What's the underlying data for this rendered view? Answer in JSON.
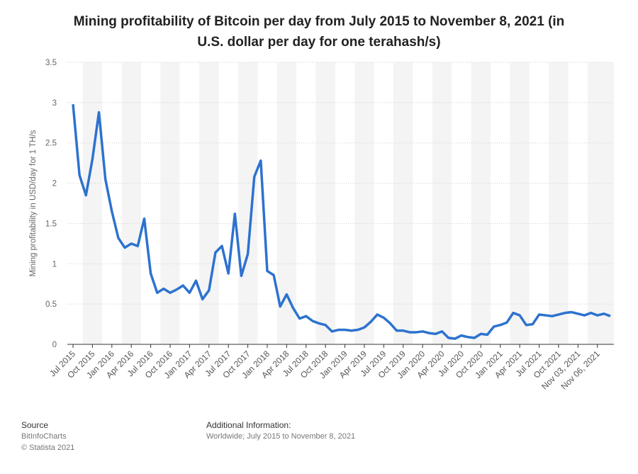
{
  "chart_data": {
    "type": "line",
    "title": "Mining profitability of Bitcoin per day from July 2015 to November 8, 2021 (in U.S. dollar per day for one terahash/s)",
    "y_label": "Mining profitability in USD/day for 1 TH/s",
    "categories": [
      "Jul 2015",
      null,
      null,
      "Oct 2015",
      null,
      null,
      "Jan 2016",
      null,
      null,
      "Apr 2016",
      null,
      null,
      "Jul 2016",
      null,
      null,
      "Oct 2016",
      null,
      null,
      "Jan 2017",
      null,
      null,
      "Apr 2017",
      null,
      null,
      "Jul 2017",
      null,
      null,
      "Oct 2017",
      null,
      null,
      "Jan 2018",
      null,
      null,
      "Apr 2018",
      null,
      null,
      "Jul 2018",
      null,
      null,
      "Oct 2018",
      null,
      null,
      "Jan 2019",
      null,
      null,
      "Apr 2019",
      null,
      null,
      "Jul 2019",
      null,
      null,
      "Oct 2019",
      null,
      null,
      "Jan 2020",
      null,
      null,
      "Apr 2020",
      null,
      null,
      "Jul 2020",
      null,
      null,
      "Oct 2020",
      null,
      null,
      "Jan 2021",
      null,
      null,
      "Apr 2021",
      null,
      null,
      "Jul 2021",
      null,
      null,
      "Oct 2021",
      null,
      null,
      "Nov 03, 2021",
      null,
      null,
      "Nov 06, 2021",
      null,
      null
    ],
    "series": [
      {
        "color": "#2d72cf",
        "values": [
          2.98,
          2.1,
          1.85,
          2.3,
          2.88,
          2.05,
          1.65,
          1.32,
          1.2,
          1.25,
          1.22,
          1.56,
          0.88,
          0.64,
          0.69,
          0.64,
          0.68,
          0.73,
          0.64,
          0.79,
          0.56,
          0.67,
          1.14,
          1.22,
          0.88,
          1.62,
          0.85,
          1.12,
          2.08,
          2.28,
          0.91,
          0.86,
          0.47,
          0.62,
          0.45,
          0.32,
          0.35,
          0.29,
          0.26,
          0.24,
          0.16,
          0.18,
          0.18,
          0.17,
          0.18,
          0.21,
          0.28,
          0.37,
          0.33,
          0.26,
          0.17,
          0.17,
          0.15,
          0.15,
          0.16,
          0.14,
          0.13,
          0.16,
          0.08,
          0.07,
          0.11,
          0.09,
          0.08,
          0.13,
          0.12,
          0.22,
          0.24,
          0.27,
          0.39,
          0.36,
          0.24,
          0.25,
          0.37,
          0.36,
          0.35,
          0.37,
          0.39,
          0.4,
          0.38,
          0.36,
          0.39,
          0.36,
          0.38,
          0.35
        ]
      }
    ],
    "ylim": [
      0,
      3.5
    ],
    "yticks": [
      0,
      0.5,
      1,
      1.5,
      2,
      2.5,
      3,
      3.5
    ],
    "grid": true
  },
  "source": {
    "heading": "Source",
    "lines": [
      "BitInfoCharts",
      "© Statista 2021"
    ]
  },
  "additional_information": {
    "heading": "Additional Information:",
    "text": "Worldwide; July 2015 to November 8, 2021"
  }
}
